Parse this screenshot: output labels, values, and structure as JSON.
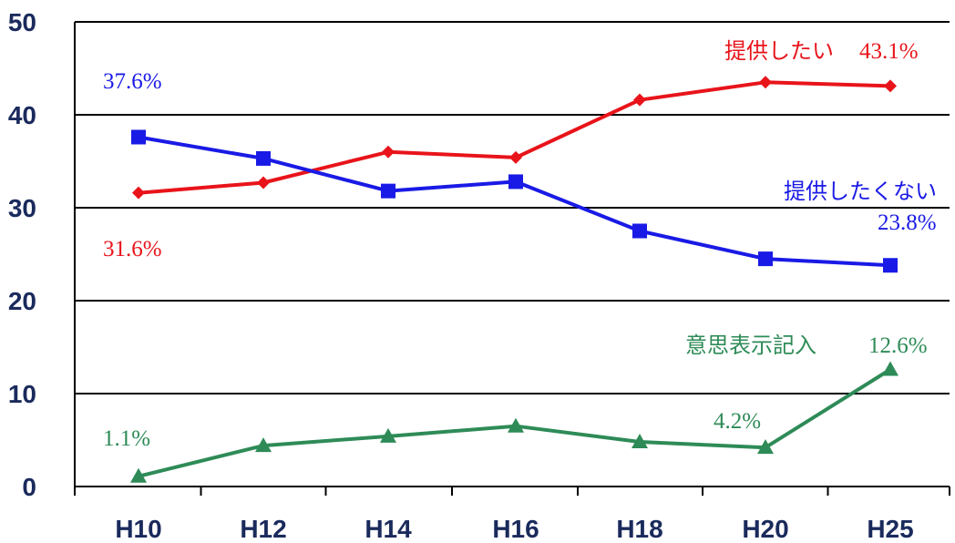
{
  "chart_data": {
    "type": "line",
    "categories": [
      "H10",
      "H12",
      "H14",
      "H16",
      "H18",
      "H20",
      "H25"
    ],
    "ylim": [
      0,
      50
    ],
    "yticks": [
      "0",
      "10",
      "20",
      "30",
      "40",
      "50"
    ],
    "grid": true,
    "series": [
      {
        "name": "提供したい",
        "color": "#e8141a",
        "marker": "diamond",
        "values": [
          31.6,
          32.7,
          36.0,
          35.4,
          41.6,
          43.5,
          43.1
        ]
      },
      {
        "name": "提供したくない",
        "color": "#1a1ae6",
        "marker": "square",
        "values": [
          37.6,
          35.3,
          31.8,
          32.8,
          27.5,
          24.5,
          23.8
        ]
      },
      {
        "name": "意思表示記入",
        "color": "#2e8b57",
        "marker": "triangle",
        "values": [
          1.1,
          4.4,
          5.4,
          6.5,
          4.8,
          4.2,
          12.6
        ]
      }
    ],
    "annotations": [
      {
        "text": "37.6%",
        "color": "#1a1ae6"
      },
      {
        "text": "31.6%",
        "color": "#e8141a"
      },
      {
        "text": "1.1%",
        "color": "#2e8b57"
      },
      {
        "text": "43.1%",
        "color": "#e8141a"
      },
      {
        "text": "23.8%",
        "color": "#1a1ae6"
      },
      {
        "text": "12.6%",
        "color": "#2e8b57"
      },
      {
        "text": "4.2%",
        "color": "#2e8b57"
      }
    ]
  }
}
